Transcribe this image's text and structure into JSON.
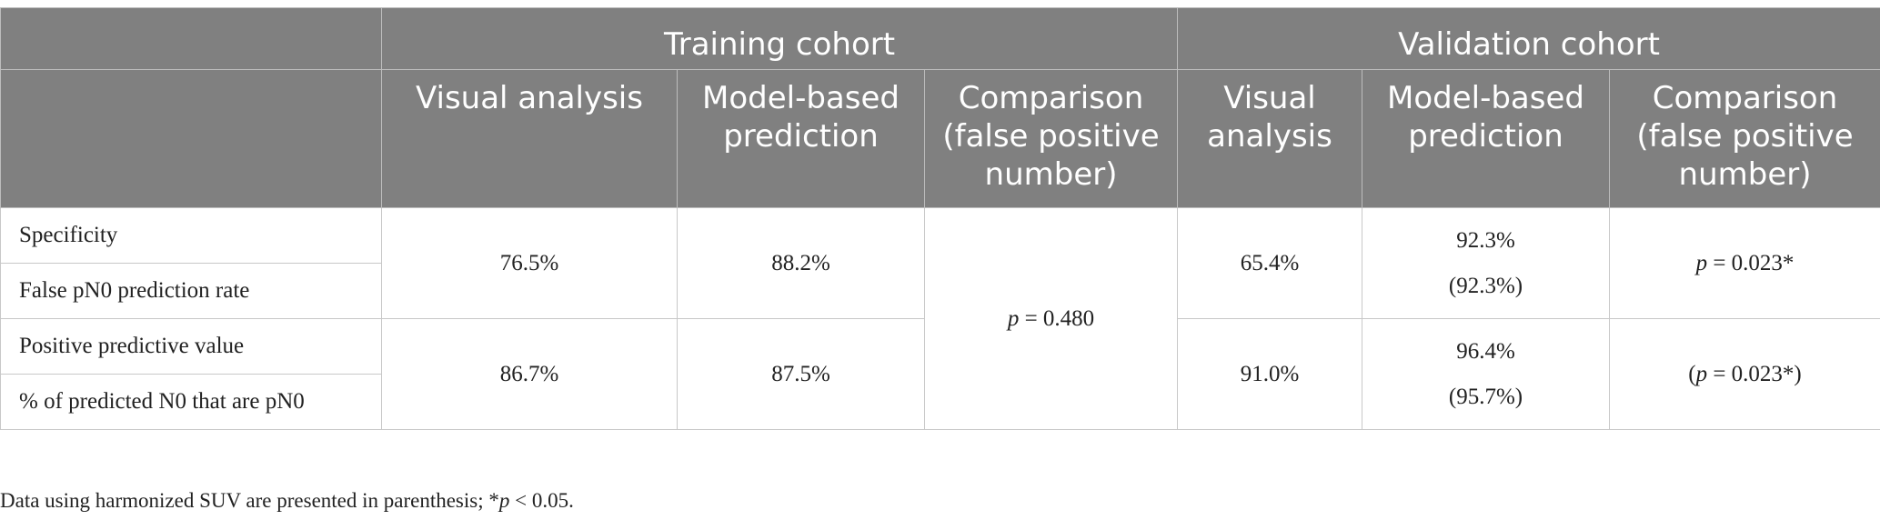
{
  "header": {
    "training_cohort": "Training cohort",
    "validation_cohort": "Validation cohort",
    "training": {
      "visual": "Visual analysis",
      "model": "Model-based prediction",
      "comparison": "Comparison (false positive number)"
    },
    "validation": {
      "visual": "Visual analysis",
      "model": "Model-based prediction",
      "comparison": "Comparison (false positive number)"
    }
  },
  "rows": {
    "specificity_label": "Specificity",
    "false_pn0_label": "False pN0 prediction rate",
    "ppv_label": "Positive predictive value",
    "predicted_n0_label": "% of predicted N0 that are pN0"
  },
  "training": {
    "specificity_visual": "76.5%",
    "specificity_model": "88.2%",
    "ppv_visual": "86.7%",
    "ppv_model": "87.5%",
    "comparison_p": "p",
    "comparison_value": " = 0.480"
  },
  "validation": {
    "specificity_visual": "65.4%",
    "specificity_model": "92.3%",
    "specificity_model_harmonized": "(92.3%)",
    "specificity_comparison_p": "p",
    "specificity_comparison_value": " = 0.023*",
    "ppv_visual": "91.0%",
    "ppv_model": "96.4%",
    "ppv_model_harmonized": "(95.7%)",
    "ppv_comparison_open": "(",
    "ppv_comparison_p": "p",
    "ppv_comparison_value": " = 0.023*)"
  },
  "footnote": {
    "text": "Data using harmonized SUV are presented in parenthesis; *",
    "p": "p",
    "tail": " < 0.05."
  }
}
